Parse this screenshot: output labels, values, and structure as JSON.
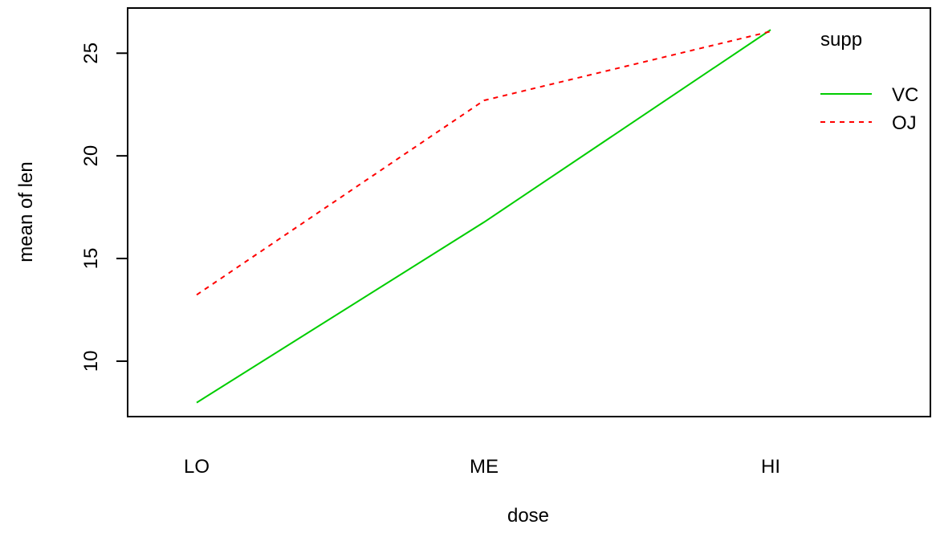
{
  "chart_data": {
    "type": "line",
    "title": "",
    "xlabel": "dose",
    "ylabel": "mean of  len",
    "categories": [
      "LO",
      "ME",
      "HI"
    ],
    "ylim": [
      7.3,
      27.2
    ],
    "yticks": [
      10,
      15,
      20,
      25
    ],
    "grid": false,
    "legend": {
      "title": "supp",
      "placement": "top-right",
      "entries": [
        "VC",
        "OJ"
      ]
    },
    "series": [
      {
        "name": "VC",
        "values": [
          7.98,
          16.77,
          26.14
        ],
        "color": "#00cd00",
        "dash": "solid"
      },
      {
        "name": "OJ",
        "values": [
          13.23,
          22.7,
          26.06
        ],
        "color": "#ff0000",
        "dash": "dashed"
      }
    ]
  }
}
